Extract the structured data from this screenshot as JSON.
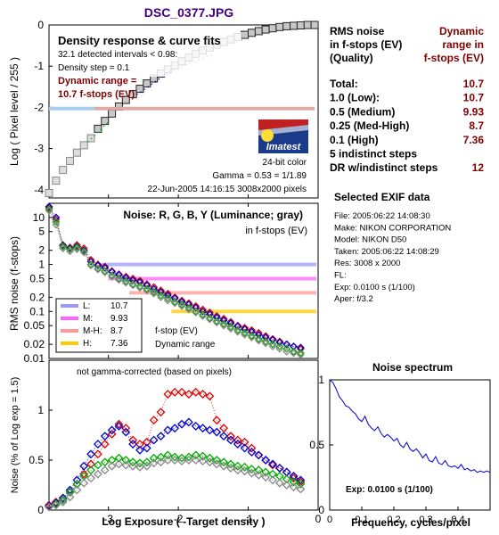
{
  "title": "DSC_0377.JPG",
  "colors": {
    "title": "#400080",
    "dark_red": "#800000",
    "L": "#9999ff",
    "M": "#ff66ff",
    "MH": "#ff9999",
    "H": "#ffcc00",
    "red": "#dd0000",
    "green": "#00aa00",
    "blue": "#0000cc",
    "gray": "#888888",
    "axis": "#000000",
    "grid": "#000000"
  },
  "rms_table": {
    "header_left": [
      "RMS noise",
      "in f-stops (EV)",
      "(Quality)"
    ],
    "header_right": [
      "Dynamic",
      "range in",
      "f-stops (EV)"
    ],
    "rows": [
      {
        "label": "Total:",
        "value": "10.7"
      },
      {
        "label": "1.0    (Low):",
        "value": "10.7"
      },
      {
        "label": "0.5    (Medium)",
        "value": "9.93"
      },
      {
        "label": "0.25 (Med-High)",
        "value": "8.7"
      },
      {
        "label": "0.1    (High)",
        "value": "7.36"
      },
      {
        "label": "5 indistinct steps",
        "value": ""
      },
      {
        "label": "DR w/indistinct steps",
        "value": "12"
      }
    ]
  },
  "exif": {
    "heading": "Selected EXIF data",
    "lines": [
      "File:  2005:06:22 14:08:30",
      "Make:  NIKON CORPORATION",
      "Model: NIKON D50",
      "Taken: 2005:06:22 14:08:29",
      "Res:   3008 x 2000",
      "FL:",
      "Exp:   0.0100 s  (1/100)",
      "Aper:  f/3.2"
    ]
  },
  "logo": {
    "text": "Imatest"
  },
  "chart_data": [
    {
      "type": "scatter",
      "id": "density",
      "title": "Density response & curve fits",
      "ylabel": "Log ( Pixel level / 255 )",
      "xlim": [
        -3.85,
        0.0
      ],
      "ylim": [
        -4.2,
        0.0
      ],
      "yticks": [
        0,
        -1,
        -2,
        -3,
        -4
      ],
      "xticks": [
        -3,
        -2,
        -1,
        0
      ],
      "annotations": [
        "32.1 detected intervals < 0.98:",
        "Density step = 0.1",
        "Dynamic range =",
        "10.7 f-stops (EV)",
        "24-bit color",
        "Gamma = 0.53 = 1/1.89",
        "22-Jun-2005 14:16:15    3008x2000 pixels"
      ],
      "points_x": [
        -3.85,
        -3.75,
        -3.65,
        -3.55,
        -3.45,
        -3.35,
        -3.25,
        -3.15,
        -3.05,
        -2.95,
        -2.85,
        -2.75,
        -2.65,
        -2.55,
        -2.45,
        -2.35,
        -2.25,
        -2.15,
        -2.05,
        -1.95,
        -1.85,
        -1.75,
        -1.65,
        -1.55,
        -1.45,
        -1.35,
        -1.25,
        -1.15,
        -1.05,
        -0.95,
        -0.85,
        -0.75,
        -0.65,
        -0.55,
        -0.45,
        -0.35,
        -0.25,
        -0.15,
        -0.05
      ],
      "points_y": [
        -4.08,
        -3.78,
        -3.52,
        -3.3,
        -3.1,
        -2.92,
        -2.75,
        -2.52,
        -2.33,
        -2.15,
        -1.98,
        -1.82,
        -1.68,
        -1.55,
        -1.42,
        -1.3,
        -1.18,
        -1.08,
        -0.98,
        -0.88,
        -0.79,
        -0.7,
        -0.62,
        -0.55,
        -0.48,
        -0.41,
        -0.35,
        -0.29,
        -0.24,
        -0.19,
        -0.15,
        -0.11,
        -0.08,
        -0.05,
        -0.03,
        -0.02,
        -0.01,
        0.0,
        0.0
      ]
    },
    {
      "type": "line",
      "id": "rms",
      "title": "Noise: R, G, B, Y (Luminance; gray)",
      "subtitle": "in f-stops (EV)",
      "ylabel": "RMS noise (f-stops)",
      "log_y": true,
      "xlim": [
        -3.85,
        0.0
      ],
      "ylim": [
        0.01,
        20
      ],
      "ytick_labels": [
        "10",
        "5",
        "2",
        "1",
        "0.5",
        "0.2",
        "0.1",
        "0.05",
        "0.02",
        "0.01"
      ],
      "yticks": [
        10,
        5,
        2,
        1,
        0.5,
        0.2,
        0.1,
        0.05,
        0.02,
        0.01
      ],
      "thresholds": [
        {
          "name": "L:",
          "value": "10.7",
          "level": 1.0,
          "x_from": -3.1
        },
        {
          "name": "M:",
          "value": "9.93",
          "level": 0.5,
          "x_from": -3.0
        },
        {
          "name": "M-H:",
          "value": "8.7",
          "level": 0.25,
          "x_from": -2.7
        },
        {
          "name": "H:",
          "value": "7.36",
          "level": 0.1,
          "x_from": -2.1
        }
      ],
      "legend_extra": [
        "f-stop (EV)",
        "Dynamic range"
      ],
      "x": [
        -3.85,
        -3.75,
        -3.65,
        -3.55,
        -3.45,
        -3.35,
        -3.25,
        -3.15,
        -3.05,
        -2.95,
        -2.85,
        -2.75,
        -2.65,
        -2.55,
        -2.45,
        -2.35,
        -2.25,
        -2.15,
        -2.05,
        -1.95,
        -1.85,
        -1.75,
        -1.65,
        -1.55,
        -1.45,
        -1.35,
        -1.25,
        -1.15,
        -1.05,
        -0.95,
        -0.85,
        -0.75,
        -0.65,
        -0.55,
        -0.45,
        -0.35,
        -0.25
      ],
      "series": [
        {
          "color": "red",
          "values": [
            16,
            9,
            2.6,
            2.3,
            2.6,
            2.2,
            1.25,
            1.0,
            0.9,
            0.72,
            0.62,
            0.55,
            0.5,
            0.45,
            0.38,
            0.33,
            0.28,
            0.24,
            0.2,
            0.17,
            0.15,
            0.13,
            0.11,
            0.095,
            0.08,
            0.07,
            0.06,
            0.05,
            0.045,
            0.04,
            0.035,
            0.03,
            0.026,
            0.023,
            0.02,
            0.018,
            0.016
          ]
        },
        {
          "color": "blue",
          "values": [
            17,
            10,
            2.5,
            2.2,
            2.4,
            2.0,
            1.15,
            0.95,
            0.85,
            0.7,
            0.6,
            0.52,
            0.46,
            0.42,
            0.36,
            0.3,
            0.26,
            0.22,
            0.19,
            0.16,
            0.14,
            0.12,
            0.1,
            0.088,
            0.075,
            0.065,
            0.056,
            0.048,
            0.042,
            0.037,
            0.032,
            0.028,
            0.025,
            0.022,
            0.02,
            0.018,
            0.017
          ]
        },
        {
          "color": "green",
          "values": [
            15,
            8,
            2.4,
            2.1,
            2.3,
            1.9,
            1.0,
            0.82,
            0.72,
            0.58,
            0.5,
            0.44,
            0.38,
            0.34,
            0.3,
            0.26,
            0.22,
            0.19,
            0.16,
            0.14,
            0.12,
            0.1,
            0.085,
            0.072,
            0.062,
            0.054,
            0.047,
            0.04,
            0.035,
            0.03,
            0.026,
            0.023,
            0.02,
            0.018,
            0.016,
            0.014,
            0.013
          ]
        },
        {
          "color": "gray",
          "values": [
            14,
            7,
            2.2,
            1.9,
            2.1,
            1.8,
            0.95,
            0.78,
            0.68,
            0.55,
            0.47,
            0.41,
            0.36,
            0.32,
            0.28,
            0.24,
            0.2,
            0.17,
            0.15,
            0.13,
            0.11,
            0.095,
            0.08,
            0.068,
            0.058,
            0.05,
            0.043,
            0.037,
            0.032,
            0.028,
            0.024,
            0.021,
            0.018,
            0.016,
            0.014,
            0.013,
            0.012
          ]
        }
      ]
    },
    {
      "type": "line",
      "id": "pct",
      "annotation": "not gamma-corrected (based on pixels)",
      "xlabel": "Log Exposure ( -Target density )",
      "ylabel": "Noise (% of Log exp = 1.5)",
      "xlim": [
        -3.85,
        0.0
      ],
      "ylim": [
        0,
        1.5
      ],
      "yticks": [
        0,
        0.5,
        1
      ],
      "xticks": [
        -3,
        -2,
        -1,
        0
      ],
      "x": [
        -3.85,
        -3.75,
        -3.65,
        -3.55,
        -3.45,
        -3.35,
        -3.25,
        -3.15,
        -3.05,
        -2.95,
        -2.85,
        -2.75,
        -2.65,
        -2.55,
        -2.45,
        -2.35,
        -2.25,
        -2.15,
        -2.05,
        -1.95,
        -1.85,
        -1.75,
        -1.65,
        -1.55,
        -1.45,
        -1.35,
        -1.25,
        -1.15,
        -1.05,
        -0.95,
        -0.85,
        -0.75,
        -0.65,
        -0.55,
        -0.45,
        -0.35,
        -0.25
      ],
      "series": [
        {
          "color": "red",
          "values": [
            0.05,
            0.08,
            0.12,
            0.18,
            0.26,
            0.36,
            0.46,
            0.56,
            0.66,
            0.76,
            0.86,
            0.82,
            0.7,
            0.66,
            0.68,
            0.9,
            0.98,
            1.16,
            1.18,
            1.18,
            1.16,
            1.18,
            1.16,
            1.14,
            0.9,
            0.82,
            0.74,
            0.7,
            0.68,
            0.62,
            0.55,
            0.5,
            0.45,
            0.42,
            0.38,
            0.32,
            0.28
          ]
        },
        {
          "color": "blue",
          "values": [
            0.04,
            0.07,
            0.12,
            0.2,
            0.3,
            0.44,
            0.56,
            0.66,
            0.74,
            0.8,
            0.84,
            0.78,
            0.66,
            0.6,
            0.62,
            0.7,
            0.74,
            0.8,
            0.82,
            0.86,
            0.88,
            0.84,
            0.82,
            0.8,
            0.78,
            0.74,
            0.7,
            0.66,
            0.62,
            0.58,
            0.55,
            0.5,
            0.46,
            0.42,
            0.38,
            0.34,
            0.3
          ]
        },
        {
          "color": "green",
          "values": [
            0.03,
            0.06,
            0.1,
            0.18,
            0.26,
            0.34,
            0.4,
            0.45,
            0.48,
            0.5,
            0.52,
            0.5,
            0.48,
            0.47,
            0.48,
            0.52,
            0.53,
            0.55,
            0.53,
            0.52,
            0.53,
            0.55,
            0.54,
            0.52,
            0.5,
            0.48,
            0.46,
            0.44,
            0.43,
            0.41,
            0.4,
            0.38,
            0.36,
            0.34,
            0.31,
            0.28,
            0.26
          ]
        },
        {
          "color": "gray",
          "values": [
            0.03,
            0.05,
            0.08,
            0.13,
            0.2,
            0.27,
            0.32,
            0.36,
            0.4,
            0.44,
            0.46,
            0.45,
            0.44,
            0.43,
            0.44,
            0.47,
            0.48,
            0.5,
            0.5,
            0.49,
            0.5,
            0.5,
            0.49,
            0.48,
            0.46,
            0.44,
            0.42,
            0.4,
            0.39,
            0.37,
            0.35,
            0.33,
            0.3,
            0.27,
            0.25,
            0.23,
            0.21
          ]
        }
      ]
    },
    {
      "type": "line",
      "id": "spectrum",
      "title": "Noise spectrum",
      "xlabel": "Frequency, cycles/pixel",
      "annotation": "Exp:  0.0100 s  (1/100)",
      "xlim": [
        0,
        0.5
      ],
      "ylim": [
        0,
        1.0
      ],
      "yticks": [
        0,
        0.5,
        1
      ],
      "xticks": [
        0,
        0.1,
        0.2,
        0.3,
        0.4
      ],
      "x": [
        0.0,
        0.01,
        0.02,
        0.03,
        0.04,
        0.05,
        0.06,
        0.07,
        0.08,
        0.09,
        0.1,
        0.11,
        0.12,
        0.13,
        0.14,
        0.15,
        0.16,
        0.17,
        0.18,
        0.19,
        0.2,
        0.21,
        0.22,
        0.23,
        0.24,
        0.25,
        0.26,
        0.27,
        0.28,
        0.29,
        0.3,
        0.31,
        0.32,
        0.33,
        0.34,
        0.35,
        0.36,
        0.37,
        0.38,
        0.39,
        0.4,
        0.41,
        0.42,
        0.43,
        0.44,
        0.45,
        0.46,
        0.47,
        0.48,
        0.49,
        0.5
      ],
      "values": [
        1.0,
        0.98,
        0.93,
        0.87,
        0.84,
        0.8,
        0.79,
        0.76,
        0.74,
        0.7,
        0.68,
        0.72,
        0.66,
        0.63,
        0.61,
        0.64,
        0.59,
        0.56,
        0.58,
        0.56,
        0.53,
        0.55,
        0.5,
        0.48,
        0.52,
        0.47,
        0.45,
        0.47,
        0.44,
        0.4,
        0.43,
        0.38,
        0.37,
        0.41,
        0.36,
        0.35,
        0.38,
        0.34,
        0.33,
        0.34,
        0.32,
        0.35,
        0.31,
        0.32,
        0.3,
        0.31,
        0.29,
        0.3,
        0.29,
        0.3,
        0.29
      ]
    }
  ]
}
